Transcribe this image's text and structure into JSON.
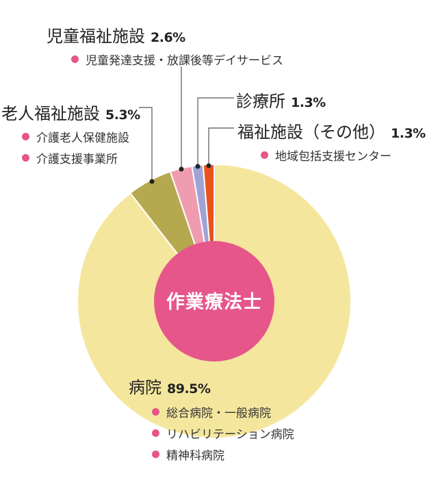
{
  "chart_data": {
    "type": "pie",
    "center_label": "作業療法士",
    "slices": [
      {
        "label": "病院",
        "value": 89.5,
        "value_label": "89.5%",
        "color": "#f4e79d",
        "examples": [
          "総合病院・一般病院",
          "リハビリテーション病院",
          "精神科病院"
        ]
      },
      {
        "label": "老人福祉施設",
        "value": 5.3,
        "value_label": "5.3%",
        "color": "#b6a84e",
        "examples": [
          "介護老人保健施設",
          "介護支援事業所"
        ]
      },
      {
        "label": "児童福祉施設",
        "value": 2.6,
        "value_label": "2.6%",
        "color": "#f09cb0",
        "examples": [
          "児童発達支援・放課後等デイサービス"
        ]
      },
      {
        "label": "診療所",
        "value": 1.3,
        "value_label": "1.3%",
        "color": "#9fa3d6",
        "examples": []
      },
      {
        "label": "福祉施設（その他）",
        "value": 1.3,
        "value_label": "1.3%",
        "color": "#e8541c",
        "examples": [
          "地域包括支援センター"
        ]
      }
    ]
  },
  "colors": {
    "center": "#e6568a",
    "bullet": "#e6568a",
    "leader": "#555555"
  }
}
